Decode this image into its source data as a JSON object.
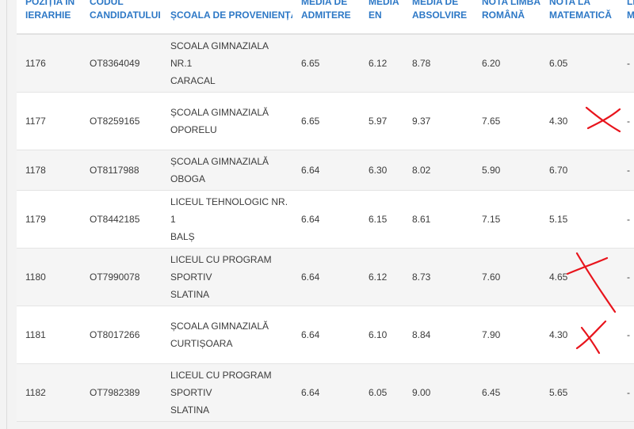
{
  "headers": [
    {
      "l1": "POZIȚIA ÎN",
      "l2": "IERARHIE"
    },
    {
      "l1": "CODUL",
      "l2": "CANDIDATULUI"
    },
    {
      "l1": "",
      "l2": "ȘCOALA DE PROVENIENȚĂ"
    },
    {
      "l1": "MEDIA DE",
      "l2": "ADMITERE"
    },
    {
      "l1": "MEDIA",
      "l2": "EN"
    },
    {
      "l1": "MEDIA DE",
      "l2": "ABSOLVIRE"
    },
    {
      "l1": "NOTA LIMBA",
      "l2": "ROMÂNĂ"
    },
    {
      "l1": "NOTA LA",
      "l2": "MATEMATICĂ"
    },
    {
      "l1": "LI",
      "l2": "M"
    }
  ],
  "rows": [
    {
      "pos": "1176",
      "code": "OT8364049",
      "school1": "SCOALA GIMNAZIALA NR.1",
      "school2": "CARACAL",
      "adm": "6.65",
      "en": "6.12",
      "abs": "8.78",
      "ro": "6.20",
      "mat": "6.05",
      "lm": "-"
    },
    {
      "pos": "1177",
      "code": "OT8259165",
      "school1": "ȘCOALA GIMNAZIALĂ",
      "school2": "OPORELU",
      "adm": "6.65",
      "en": "5.97",
      "abs": "9.37",
      "ro": "7.65",
      "mat": "4.30",
      "lm": "-"
    },
    {
      "pos": "1178",
      "code": "OT8117988",
      "school1": "ȘCOALA GIMNAZIALĂ OBOGA",
      "school2": "",
      "adm": "6.64",
      "en": "6.30",
      "abs": "8.02",
      "ro": "5.90",
      "mat": "6.70",
      "lm": "-"
    },
    {
      "pos": "1179",
      "code": "OT8442185",
      "school1": "LICEUL TEHNOLOGIC NR. 1",
      "school2": "BALȘ",
      "adm": "6.64",
      "en": "6.15",
      "abs": "8.61",
      "ro": "7.15",
      "mat": "5.15",
      "lm": "-"
    },
    {
      "pos": "1180",
      "code": "OT7990078",
      "school1": "LICEUL CU PROGRAM SPORTIV",
      "school2": "SLATINA",
      "adm": "6.64",
      "en": "6.12",
      "abs": "8.73",
      "ro": "7.60",
      "mat": "4.65",
      "lm": "-"
    },
    {
      "pos": "1181",
      "code": "OT8017266",
      "school1": "ȘCOALA GIMNAZIALĂ",
      "school2": "CURTIȘOARA",
      "adm": "6.64",
      "en": "6.10",
      "abs": "8.84",
      "ro": "7.90",
      "mat": "4.30",
      "lm": "-"
    },
    {
      "pos": "1182",
      "code": "OT7982389",
      "school1": "LICEUL CU PROGRAM SPORTIV",
      "school2": "SLATINA",
      "adm": "6.64",
      "en": "6.05",
      "abs": "9.00",
      "ro": "6.45",
      "mat": "5.65",
      "lm": "-"
    }
  ],
  "colors": {
    "header_text": "#2d78c6",
    "annotation": "#e8141c",
    "row_alt": "#f5f5f5"
  }
}
